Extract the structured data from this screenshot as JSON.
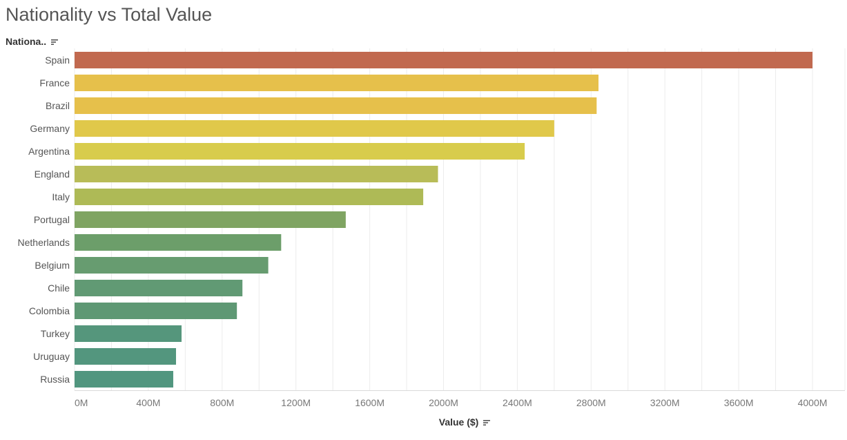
{
  "title": "Nationality vs Total Value",
  "y_header": "Nationa..",
  "sort_icon": "sort-descending-icon",
  "chart_data": {
    "type": "bar",
    "orientation": "horizontal",
    "title": "Nationality vs Total Value",
    "xlabel": "Value ($)",
    "ylabel": "Nationa..",
    "xlim": [
      0,
      4000
    ],
    "x_unit_suffix": "M",
    "x_ticks": [
      "0M",
      "400M",
      "800M",
      "1200M",
      "1600M",
      "2000M",
      "2400M",
      "2800M",
      "3200M",
      "3600M",
      "4000M"
    ],
    "grid": "vertical",
    "categories": [
      "Spain",
      "France",
      "Brazil",
      "Germany",
      "Argentina",
      "England",
      "Italy",
      "Portugal",
      "Netherlands",
      "Belgium",
      "Chile",
      "Colombia",
      "Turkey",
      "Uruguay",
      "Russia"
    ],
    "values": [
      4000,
      2840,
      2830,
      2600,
      2440,
      1970,
      1890,
      1470,
      1120,
      1050,
      910,
      880,
      580,
      550,
      535
    ],
    "colors": [
      "#c1694f",
      "#e6c04b",
      "#e6c04b",
      "#e0c84a",
      "#d8cc4c",
      "#b8bc58",
      "#aeba56",
      "#7fa462",
      "#6c9e6a",
      "#679c70",
      "#619a74",
      "#5e9874",
      "#55967c",
      "#53967e",
      "#51967f"
    ]
  }
}
